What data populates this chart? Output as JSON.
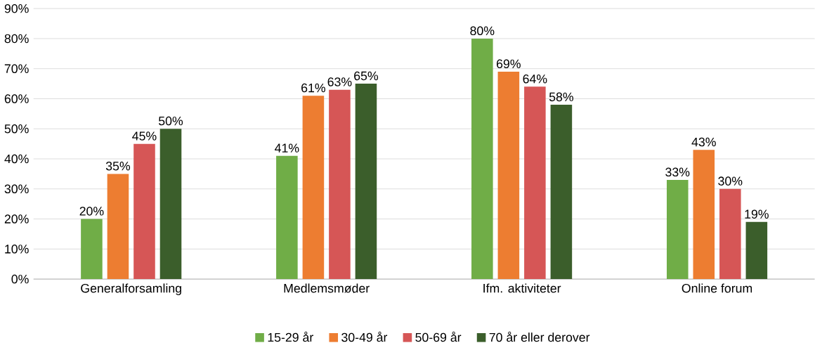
{
  "chart_data": {
    "type": "bar",
    "categories": [
      "Generalforsamling",
      "Medlemsmøder",
      "Ifm. aktiviteter",
      "Online forum"
    ],
    "series": [
      {
        "name": "15-29 år",
        "color": "#70ad47",
        "values": [
          20,
          41,
          80,
          33
        ],
        "value_labels": [
          "20%",
          "41%",
          "80%",
          "33%"
        ]
      },
      {
        "name": "30-49 år",
        "color": "#ed7d31",
        "values": [
          35,
          61,
          69,
          43
        ],
        "value_labels": [
          "35%",
          "61%",
          "69%",
          "43%"
        ]
      },
      {
        "name": "50-69 år",
        "color": "#d65656",
        "values": [
          45,
          63,
          64,
          30
        ],
        "value_labels": [
          "45%",
          "63%",
          "64%",
          "30%"
        ]
      },
      {
        "name": "70 år eller derover",
        "color": "#3b5e2b",
        "values": [
          50,
          65,
          58,
          19
        ],
        "value_labels": [
          "50%",
          "65%",
          "58%",
          "19%"
        ]
      }
    ],
    "ylim": [
      0,
      90
    ],
    "yticks": [
      {
        "value": 0,
        "label": "0%"
      },
      {
        "value": 10,
        "label": "10%"
      },
      {
        "value": 20,
        "label": "20%"
      },
      {
        "value": 30,
        "label": "30%"
      },
      {
        "value": 40,
        "label": "40%"
      },
      {
        "value": 50,
        "label": "50%"
      },
      {
        "value": 60,
        "label": "60%"
      },
      {
        "value": 70,
        "label": "70%"
      },
      {
        "value": 80,
        "label": "80%"
      },
      {
        "value": 90,
        "label": "90%"
      }
    ],
    "grid": "y",
    "legend": "bottom"
  }
}
